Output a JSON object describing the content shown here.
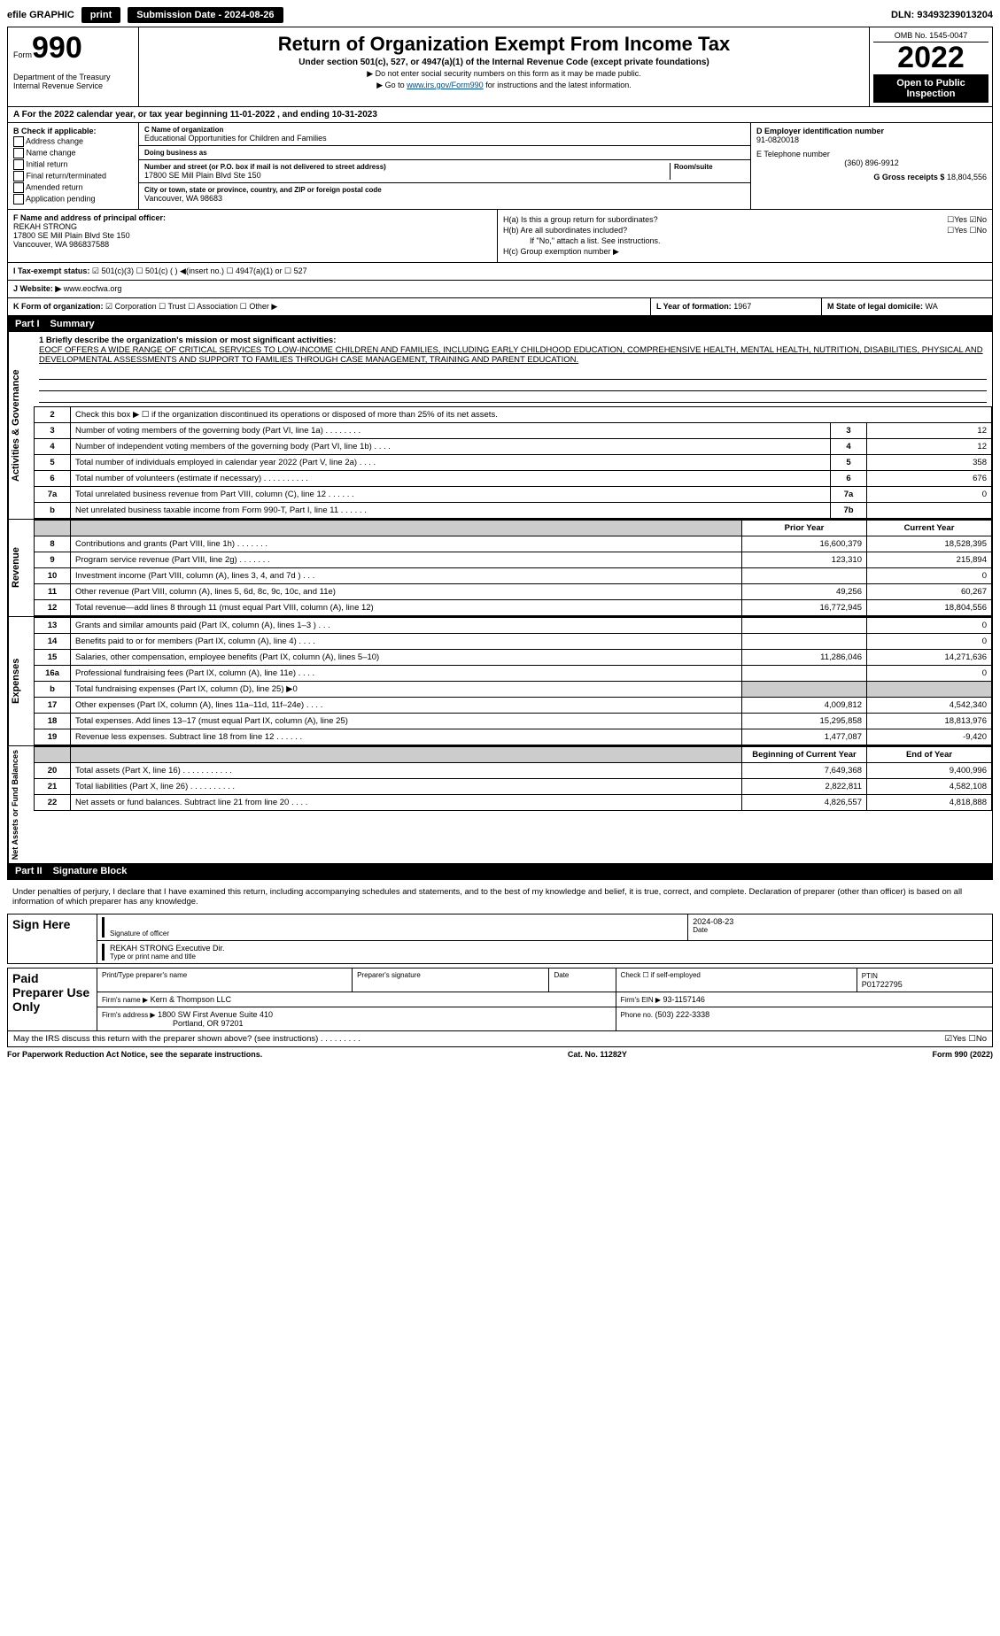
{
  "topbar": {
    "efile": "efile GRAPHIC",
    "print": "print",
    "submission": "Submission Date - 2024-08-26",
    "dln": "DLN: 93493239013204"
  },
  "header": {
    "form_label": "Form",
    "form_num": "990",
    "title": "Return of Organization Exempt From Income Tax",
    "subtitle": "Under section 501(c), 527, or 4947(a)(1) of the Internal Revenue Code (except private foundations)",
    "warn": "▶ Do not enter social security numbers on this form as it may be made public.",
    "goto_pre": "▶ Go to ",
    "goto_link": "www.irs.gov/Form990",
    "goto_post": " for instructions and the latest information.",
    "omb": "OMB No. 1545-0047",
    "year": "2022",
    "open": "Open to Public Inspection",
    "dept": "Department of the Treasury",
    "irs": "Internal Revenue Service"
  },
  "row_a": "A For the 2022 calendar year, or tax year beginning 11-01-2022    , and ending 10-31-2023",
  "col_b": {
    "title": "B Check if applicable:",
    "items": [
      "Address change",
      "Name change",
      "Initial return",
      "Final return/terminated",
      "Amended return",
      "Application pending"
    ]
  },
  "col_c": {
    "name_lbl": "C Name of organization",
    "name": "Educational Opportunities for Children and Families",
    "dba_lbl": "Doing business as",
    "dba": "",
    "street_lbl": "Number and street (or P.O. box if mail is not delivered to street address)",
    "room_lbl": "Room/suite",
    "street": "17800 SE Mill Plain Blvd Ste 150",
    "city_lbl": "City or town, state or province, country, and ZIP or foreign postal code",
    "city": "Vancouver, WA  98683"
  },
  "col_d": {
    "ein_lbl": "D Employer identification number",
    "ein": "91-0820018",
    "tel_lbl": "E Telephone number",
    "tel": "(360) 896-9912",
    "gross_lbl": "G Gross receipts $",
    "gross": "18,804,556"
  },
  "col_f": {
    "lbl": "F Name and address of principal officer:",
    "name": "REKAH STRONG",
    "addr1": "17800 SE Mill Plain Blvd Ste 150",
    "addr2": "Vancouver, WA  986837588"
  },
  "col_h": {
    "a": "H(a)  Is this a group return for subordinates?",
    "a_ans": "☐Yes ☑No",
    "b": "H(b)  Are all subordinates included?",
    "b_ans": "☐Yes ☐No",
    "b_note": "If \"No,\" attach a list. See instructions.",
    "c": "H(c)  Group exemption number ▶"
  },
  "row_i": {
    "lbl": "I   Tax-exempt status:",
    "opts": "☑ 501(c)(3)    ☐ 501(c) (  ) ◀(insert no.)    ☐ 4947(a)(1) or    ☐ 527"
  },
  "row_j": {
    "lbl": "J   Website: ▶",
    "url": "www.eocfwa.org"
  },
  "row_k": {
    "lbl": "K Form of organization:",
    "opts": "☑ Corporation  ☐ Trust  ☐ Association  ☐ Other ▶"
  },
  "row_l": {
    "lbl": "L Year of formation:",
    "val": "1967"
  },
  "row_m": {
    "lbl": "M State of legal domicile:",
    "val": "WA"
  },
  "part1": {
    "num": "Part I",
    "title": "Summary"
  },
  "mission": {
    "line1": "1  Briefly describe the organization's mission or most significant activities:",
    "text": "EOCF OFFERS A WIDE RANGE OF CRITICAL SERVICES TO LOW-INCOME CHILDREN AND FAMILIES, INCLUDING EARLY CHILDHOOD EDUCATION, COMPREHENSIVE HEALTH, MENTAL HEALTH, NUTRITION, DISABILITIES, PHYSICAL AND DEVELOPMENTAL ASSESSMENTS AND SUPPORT TO FAMILIES THROUGH CASE MANAGEMENT, TRAINING AND PARENT EDUCATION."
  },
  "gov_rows": [
    {
      "n": "2",
      "d": "Check this box ▶ ☐ if the organization discontinued its operations or disposed of more than 25% of its net assets.",
      "b": "",
      "v": ""
    },
    {
      "n": "3",
      "d": "Number of voting members of the governing body (Part VI, line 1a)  .  .  .  .  .  .  .  .",
      "b": "3",
      "v": "12"
    },
    {
      "n": "4",
      "d": "Number of independent voting members of the governing body (Part VI, line 1b)  .  .  .  .",
      "b": "4",
      "v": "12"
    },
    {
      "n": "5",
      "d": "Total number of individuals employed in calendar year 2022 (Part V, line 2a)  .  .  .  .",
      "b": "5",
      "v": "358"
    },
    {
      "n": "6",
      "d": "Total number of volunteers (estimate if necessary)  .  .  .  .  .  .  .  .  .  .",
      "b": "6",
      "v": "676"
    },
    {
      "n": "7a",
      "d": "Total unrelated business revenue from Part VIII, column (C), line 12  .  .  .  .  .  .",
      "b": "7a",
      "v": "0"
    },
    {
      "n": "b",
      "d": "Net unrelated business taxable income from Form 990-T, Part I, line 11  .  .  .  .  .  .",
      "b": "7b",
      "v": ""
    }
  ],
  "year_hdr": {
    "prior": "Prior Year",
    "current": "Current Year"
  },
  "rev_rows": [
    {
      "n": "8",
      "d": "Contributions and grants (Part VIII, line 1h)  .  .  .  .  .  .  .",
      "p": "16,600,379",
      "c": "18,528,395"
    },
    {
      "n": "9",
      "d": "Program service revenue (Part VIII, line 2g)  .  .  .  .  .  .  .",
      "p": "123,310",
      "c": "215,894"
    },
    {
      "n": "10",
      "d": "Investment income (Part VIII, column (A), lines 3, 4, and 7d )  .  .  .",
      "p": "",
      "c": "0"
    },
    {
      "n": "11",
      "d": "Other revenue (Part VIII, column (A), lines 5, 6d, 8c, 9c, 10c, and 11e)",
      "p": "49,256",
      "c": "60,267"
    },
    {
      "n": "12",
      "d": "Total revenue—add lines 8 through 11 (must equal Part VIII, column (A), line 12)",
      "p": "16,772,945",
      "c": "18,804,556"
    }
  ],
  "exp_rows": [
    {
      "n": "13",
      "d": "Grants and similar amounts paid (Part IX, column (A), lines 1–3 )  .  .  .",
      "p": "",
      "c": "0"
    },
    {
      "n": "14",
      "d": "Benefits paid to or for members (Part IX, column (A), line 4)  .  .  .  .",
      "p": "",
      "c": "0"
    },
    {
      "n": "15",
      "d": "Salaries, other compensation, employee benefits (Part IX, column (A), lines 5–10)",
      "p": "11,286,046",
      "c": "14,271,636"
    },
    {
      "n": "16a",
      "d": "Professional fundraising fees (Part IX, column (A), line 11e)  .  .  .  .",
      "p": "",
      "c": "0"
    },
    {
      "n": "b",
      "d": "Total fundraising expenses (Part IX, column (D), line 25) ▶0",
      "p": "GRAY",
      "c": "GRAY"
    },
    {
      "n": "17",
      "d": "Other expenses (Part IX, column (A), lines 11a–11d, 11f–24e)  .  .  .  .",
      "p": "4,009,812",
      "c": "4,542,340"
    },
    {
      "n": "18",
      "d": "Total expenses. Add lines 13–17 (must equal Part IX, column (A), line 25)",
      "p": "15,295,858",
      "c": "18,813,976"
    },
    {
      "n": "19",
      "d": "Revenue less expenses. Subtract line 18 from line 12  .  .  .  .  .  .",
      "p": "1,477,087",
      "c": "-9,420"
    }
  ],
  "na_hdr": {
    "beg": "Beginning of Current Year",
    "end": "End of Year"
  },
  "na_rows": [
    {
      "n": "20",
      "d": "Total assets (Part X, line 16)  .  .  .  .  .  .  .  .  .  .  .",
      "p": "7,649,368",
      "c": "9,400,996"
    },
    {
      "n": "21",
      "d": "Total liabilities (Part X, line 26)  .  .  .  .  .  .  .  .  .  .",
      "p": "2,822,811",
      "c": "4,582,108"
    },
    {
      "n": "22",
      "d": "Net assets or fund balances. Subtract line 21 from line 20  .  .  .  .",
      "p": "4,826,557",
      "c": "4,818,888"
    }
  ],
  "part2": {
    "num": "Part II",
    "title": "Signature Block"
  },
  "sig": {
    "decl": "Under penalties of perjury, I declare that I have examined this return, including accompanying schedules and statements, and to the best of my knowledge and belief, it is true, correct, and complete. Declaration of preparer (other than officer) is based on all information of which preparer has any knowledge.",
    "sign_here": "Sign Here",
    "date": "2024-08-23",
    "sig_lbl": "Signature of officer",
    "date_lbl": "Date",
    "name": "REKAH STRONG Executive Dir.",
    "name_lbl": "Type or print name and title",
    "paid": "Paid Preparer Use Only",
    "prep_name_lbl": "Print/Type preparer's name",
    "prep_sig_lbl": "Preparer's signature",
    "prep_date_lbl": "Date",
    "self_emp": "Check ☐ if self-employed",
    "ptin_lbl": "PTIN",
    "ptin": "P01722795",
    "firm_name_lbl": "Firm's name    ▶",
    "firm_name": "Kern & Thompson LLC",
    "firm_ein_lbl": "Firm's EIN ▶",
    "firm_ein": "93-1157146",
    "firm_addr_lbl": "Firm's address ▶",
    "firm_addr1": "1800 SW First Avenue Suite 410",
    "firm_addr2": "Portland, OR  97201",
    "phone_lbl": "Phone no.",
    "phone": "(503) 222-3338",
    "may_irs": "May the IRS discuss this return with the preparer shown above? (see instructions)  .  .  .  .  .  .  .  .  .",
    "may_ans": "☑Yes  ☐No"
  },
  "footer": {
    "left": "For Paperwork Reduction Act Notice, see the separate instructions.",
    "mid": "Cat. No. 11282Y",
    "right": "Form 990 (2022)"
  },
  "side_labels": {
    "gov": "Activities & Governance",
    "rev": "Revenue",
    "exp": "Expenses",
    "na": "Net Assets or Fund Balances"
  }
}
